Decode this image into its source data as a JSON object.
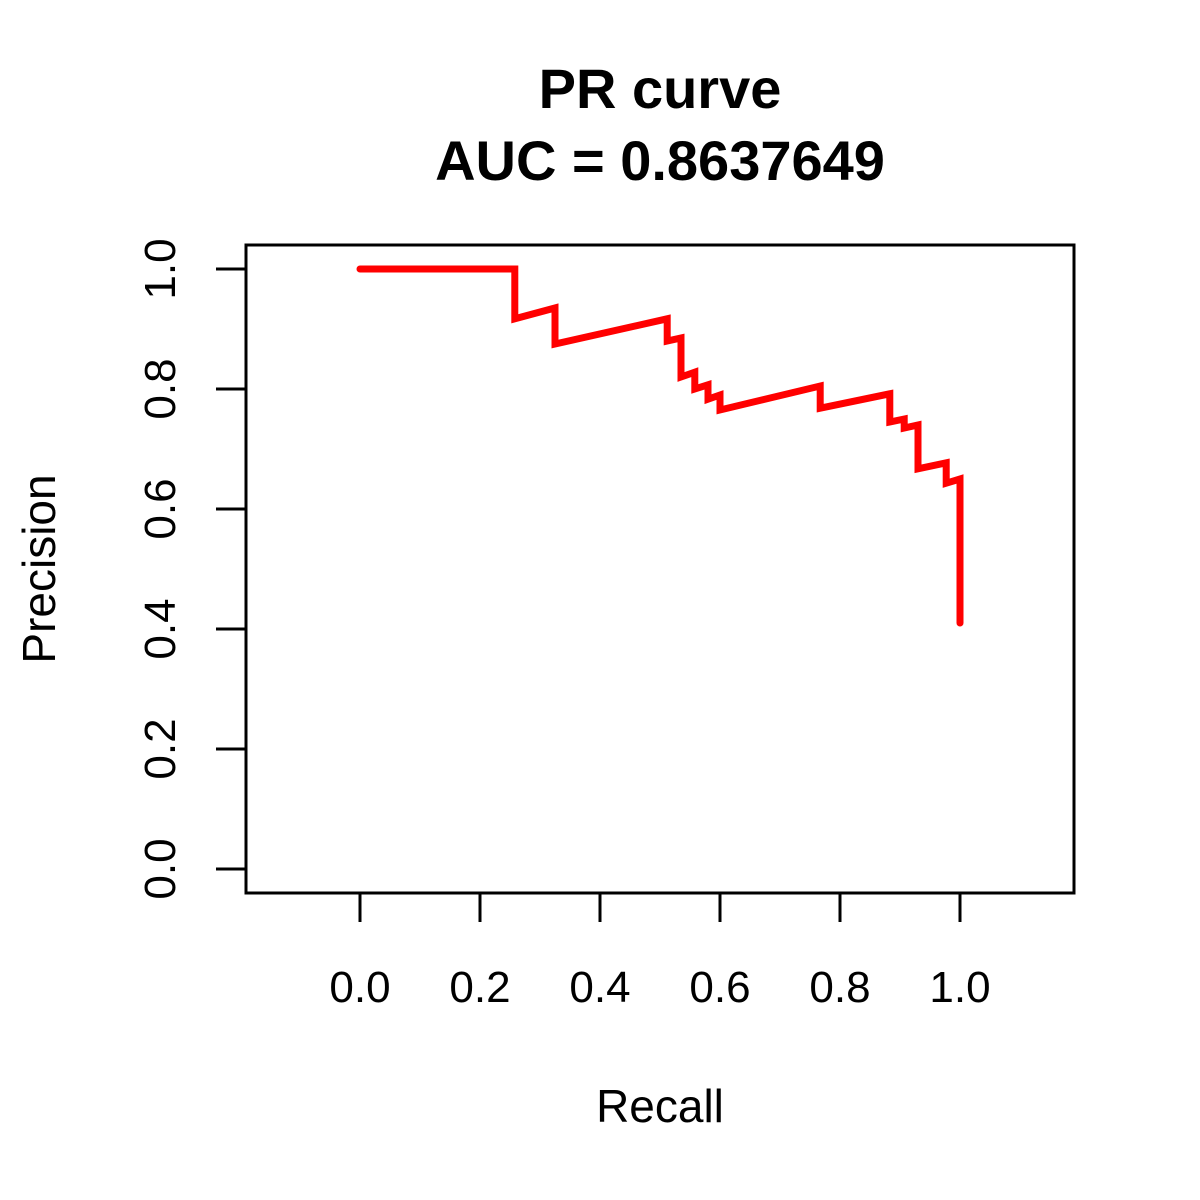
{
  "chart_data": {
    "type": "line",
    "title": "PR curve",
    "subtitle": "AUC = 0.8637649",
    "xlabel": "Recall",
    "ylabel": "Precision",
    "xlim": [
      -0.19,
      1.19
    ],
    "ylim": [
      -0.04,
      1.04
    ],
    "x_ticks": [
      0.0,
      0.2,
      0.4,
      0.6,
      0.8,
      1.0
    ],
    "x_tick_labels": [
      "0.0",
      "0.2",
      "0.4",
      "0.6",
      "0.8",
      "1.0"
    ],
    "y_ticks": [
      0.0,
      0.2,
      0.4,
      0.6,
      0.8,
      1.0
    ],
    "y_tick_labels": [
      "0.0",
      "0.2",
      "0.4",
      "0.6",
      "0.8",
      "1.0"
    ],
    "grid": false,
    "legend": "none",
    "series": [
      {
        "color": "#ff0000",
        "x": [
          0.0,
          0.258,
          0.258,
          0.325,
          0.325,
          0.512,
          0.512,
          0.535,
          0.535,
          0.558,
          0.558,
          0.58,
          0.58,
          0.6,
          0.6,
          0.767,
          0.767,
          0.883,
          0.883,
          0.907,
          0.907,
          0.93,
          0.93,
          0.977,
          0.977,
          1.0,
          1.0
        ],
        "y": [
          1.0,
          1.0,
          0.917,
          0.935,
          0.875,
          0.917,
          0.88,
          0.885,
          0.82,
          0.828,
          0.8,
          0.807,
          0.783,
          0.79,
          0.765,
          0.805,
          0.768,
          0.792,
          0.745,
          0.75,
          0.735,
          0.74,
          0.667,
          0.677,
          0.643,
          0.65,
          0.41
        ]
      }
    ]
  }
}
